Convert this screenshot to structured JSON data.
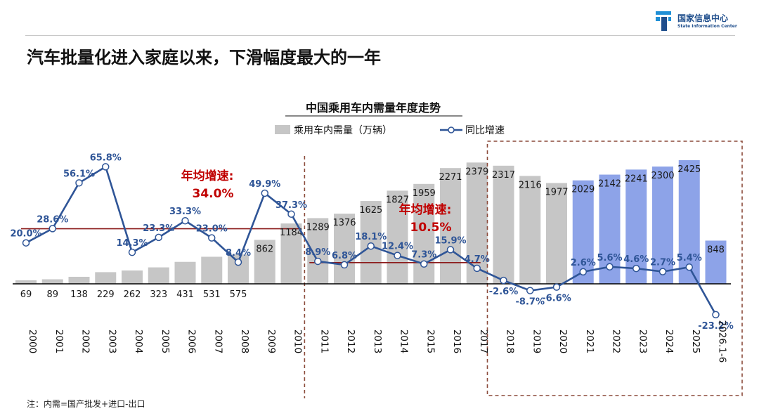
{
  "header": {
    "logo_cn": "国家信息中心",
    "logo_en": "State Information Center",
    "slide_title": "汽车批量化进入家庭以来，下滑幅度最大的一年",
    "footnote": "注：内需=国产批发+进口-出口"
  },
  "chart_data": {
    "type": "bar",
    "title": "中国乘用车内需量年度走势",
    "categories": [
      "2000",
      "2001",
      "2002",
      "2003",
      "2004",
      "2005",
      "2006",
      "2007",
      "2008",
      "2009",
      "2010",
      "2011",
      "2012",
      "2013",
      "2014",
      "2015",
      "2016",
      "2017",
      "2018",
      "2019",
      "2020",
      "2021",
      "2022",
      "2023",
      "2024",
      "2025",
      "2026.1-6"
    ],
    "series": [
      {
        "name": "乘用车内需量（万辆）",
        "kind": "bar",
        "values": [
          69,
          89,
          138,
          229,
          262,
          323,
          431,
          531,
          575,
          862,
          1184,
          1289,
          1376,
          1625,
          1827,
          1959,
          2271,
          2379,
          2317,
          2116,
          1977,
          2029,
          2142,
          2241,
          2300,
          2425,
          848
        ],
        "labels": [
          "69",
          "89",
          "138",
          "229",
          "262",
          "323",
          "431",
          "531",
          "575",
          "862",
          "1184",
          "1289",
          "1376",
          "1625",
          "1827",
          "1959",
          "2271",
          "2379",
          "2317",
          "2116",
          "1977",
          "2029",
          "2142",
          "2241",
          "2300",
          "2425",
          "848"
        ]
      },
      {
        "name": "同比增速",
        "kind": "line",
        "values": [
          20.0,
          28.6,
          56.1,
          65.8,
          14.3,
          23.3,
          33.3,
          23.0,
          8.4,
          49.9,
          37.3,
          8.9,
          6.8,
          18.1,
          12.4,
          7.3,
          15.9,
          4.7,
          -2.6,
          -8.7,
          -6.6,
          2.6,
          5.6,
          4.6,
          2.7,
          5.4,
          -23.2
        ],
        "labels": [
          "20.0%",
          "28.6%",
          "56.1%",
          "65.8%",
          "14.3%",
          "23.3%",
          "33.3%",
          "23.0%",
          "8.4%",
          "49.9%",
          "37.3%",
          "8.9%",
          "6.8%",
          "18.1%",
          "12.4%",
          "7.3%",
          "15.9%",
          "4.7%",
          "-2.6%",
          "-8.7%",
          "-6.6%",
          "2.6%",
          "5.6%",
          "4.6%",
          "2.7%",
          "5.4%",
          "-23.2%"
        ]
      }
    ],
    "annotations": [
      {
        "text": "年均增速:",
        "value": "34.0%",
        "avg_line_value": 28.5,
        "from": "2000",
        "to": "2010"
      },
      {
        "text": "年均增速:",
        "value": "10.5%",
        "avg_line_value": 8.1,
        "from": "2011",
        "to": "2017"
      }
    ],
    "highlighted_categories": [
      "2021",
      "2022",
      "2023",
      "2024",
      "2025",
      "2026.1-6"
    ],
    "dashed_box_from": "2018",
    "legend_position": "top-center",
    "grid": false,
    "colors": {
      "bar": "#c6c6c6",
      "bar_highlight": "#8da3e8",
      "line": "#2f5597",
      "label": "#2f5597",
      "avg_line": "#8b1a1a",
      "annotation": "#c00000",
      "dashed": "#8b4a3a",
      "axis": "#000000"
    }
  }
}
